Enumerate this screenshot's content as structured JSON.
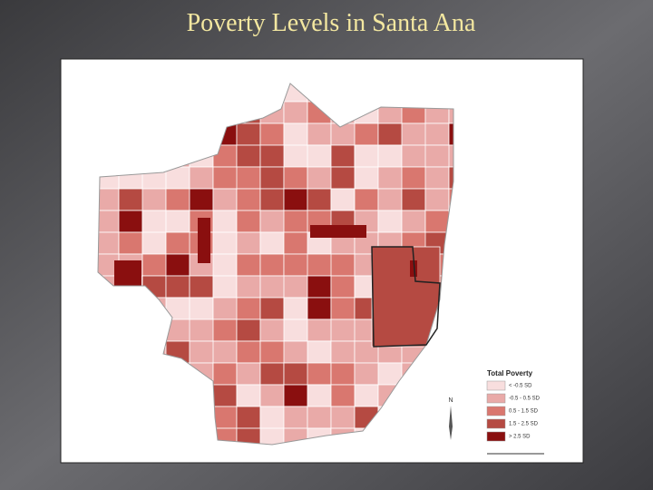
{
  "title": "Poverty Levels in Santa Ana",
  "legend": {
    "title": "Total Poverty",
    "items": [
      {
        "label": "< -0.5 SD",
        "color": "#f8dede"
      },
      {
        "label": "-0.5 - 0.5 SD",
        "color": "#e9aaa8"
      },
      {
        "label": "0.5 - 1.5 SD",
        "color": "#d9776f"
      },
      {
        "label": "1.5 - 2.5 SD",
        "color": "#b54a42"
      },
      {
        "label": "> 2.5 SD",
        "color": "#8a0f0f"
      }
    ]
  },
  "north_arrow": "N"
}
